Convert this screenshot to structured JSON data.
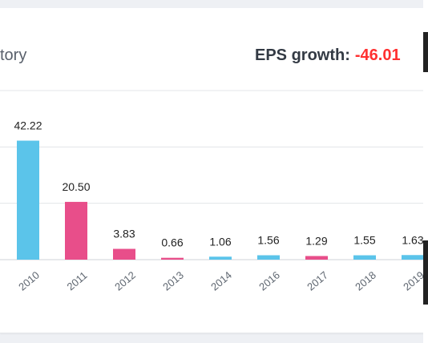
{
  "header": {
    "title_fragment": "tory",
    "growth_label": "EPS growth:",
    "growth_value": "-46.01"
  },
  "colors": {
    "positive": "#5bc4ea",
    "negative": "#e84e8a",
    "growth_negative": "#ff3030"
  },
  "chart_data": {
    "type": "bar",
    "categories": [
      "2010",
      "2011",
      "2012",
      "2013",
      "2014",
      "2016",
      "2017",
      "2018",
      "2019"
    ],
    "values": [
      42.22,
      20.5,
      3.83,
      0.66,
      1.06,
      1.56,
      1.29,
      1.55,
      1.63
    ],
    "labels": [
      "42.22",
      "20.50",
      "3.83",
      "0.66",
      "1.06",
      "1.56",
      "1.29",
      "1.55",
      "1.63"
    ],
    "bar_colors": [
      "#5bc4ea",
      "#e84e8a",
      "#e84e8a",
      "#e84e8a",
      "#5bc4ea",
      "#5bc4ea",
      "#e84e8a",
      "#5bc4ea",
      "#5bc4ea"
    ],
    "ylim": [
      0,
      60
    ],
    "grid": true
  }
}
